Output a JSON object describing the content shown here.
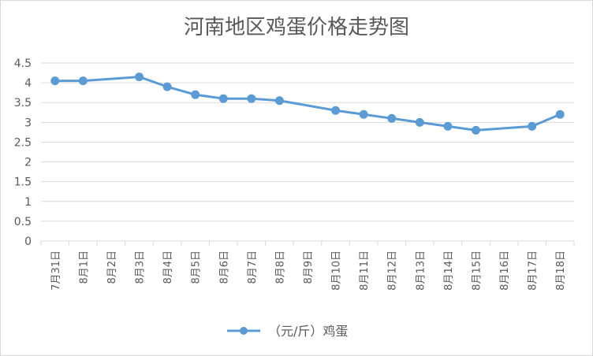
{
  "chart_data": {
    "type": "line",
    "title": "河南地区鸡蛋价格走势图",
    "categories": [
      "7月31日",
      "8月1日",
      "8月2日",
      "8月3日",
      "8月4日",
      "8月5日",
      "8月6日",
      "8月7日",
      "8月8日",
      "8月9日",
      "8月10日",
      "8月11日",
      "8月12日",
      "8月13日",
      "8月14日",
      "8月15日",
      "8月16日",
      "8月17日",
      "8月18日"
    ],
    "series": [
      {
        "name": "（元/斤）鸡蛋",
        "values": [
          4.05,
          4.05,
          null,
          4.15,
          3.9,
          3.7,
          3.6,
          3.6,
          3.55,
          null,
          3.3,
          3.2,
          3.1,
          3.0,
          2.9,
          2.8,
          null,
          2.9,
          3.2
        ],
        "color": "#5b9bd5"
      }
    ],
    "ylim": [
      0,
      4.5
    ],
    "yticks": [
      "0",
      "0.5",
      "1",
      "1.5",
      "2",
      "2.5",
      "3",
      "3.5",
      "4",
      "4.5"
    ],
    "grid": true,
    "legend_position": "bottom"
  }
}
